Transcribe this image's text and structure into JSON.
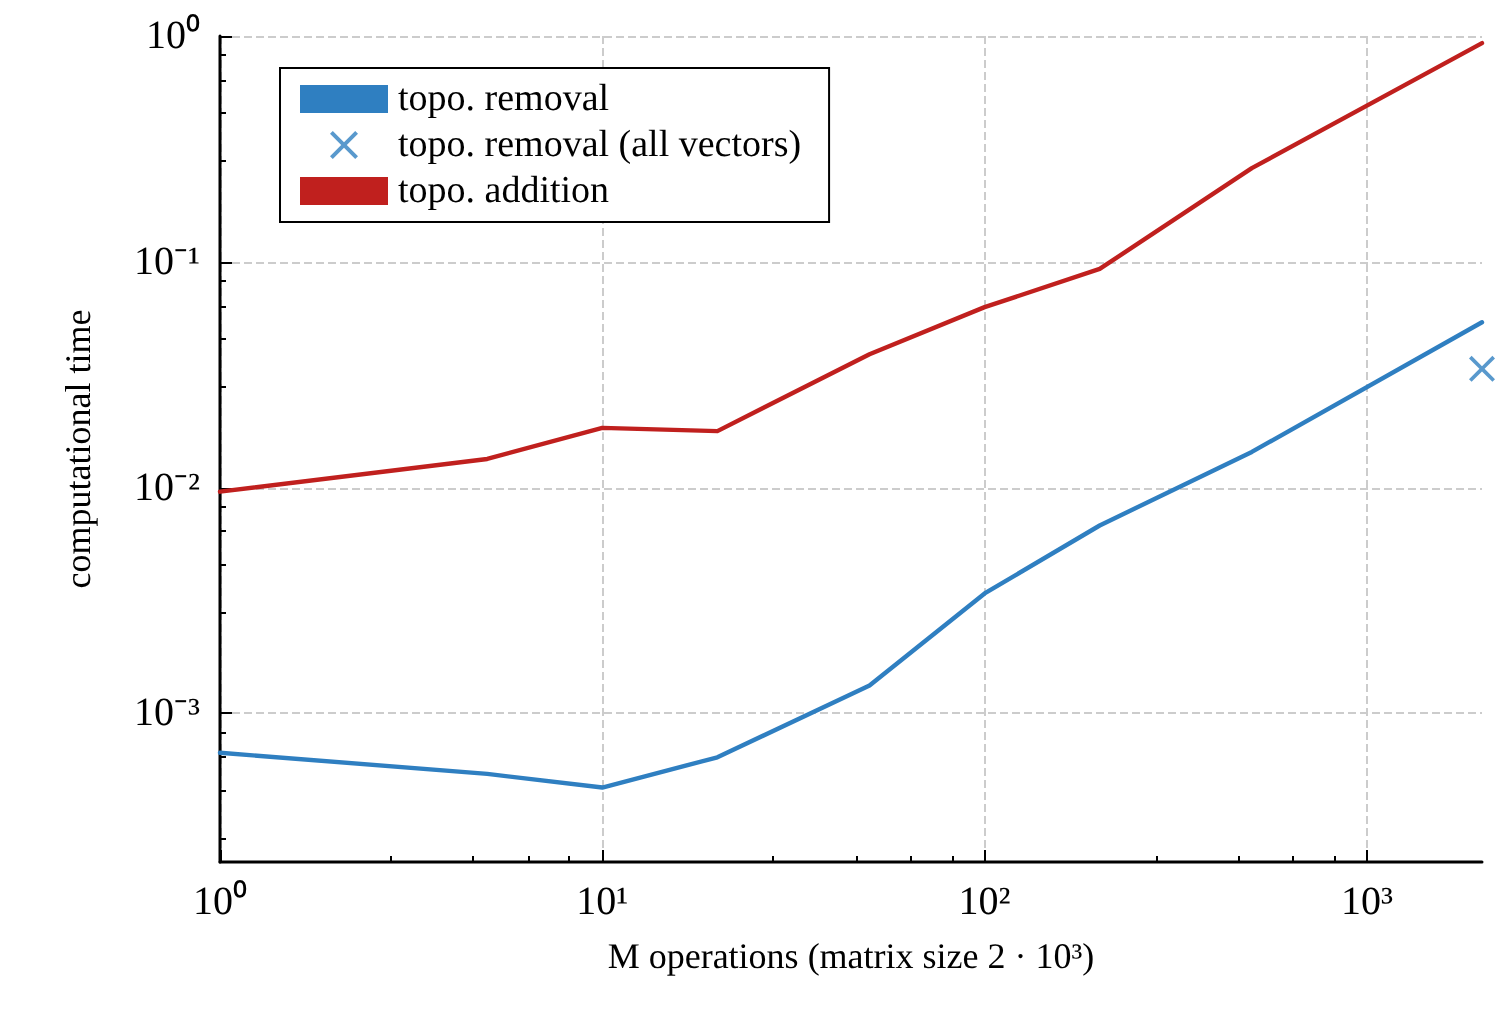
{
  "chart_data": {
    "type": "line",
    "xlabel": "M operations (matrix size 2 · 10³)",
    "ylabel": "computational time",
    "x": [
      1,
      5,
      10,
      20,
      50,
      100,
      200,
      500,
      2000
    ],
    "series": [
      {
        "name": "topo. removal",
        "color": "#2f7fc1",
        "values": [
          0.00067,
          0.00054,
          0.00047,
          0.00064,
          0.00133,
          0.0034,
          0.0068,
          0.0144,
          0.054
        ]
      },
      {
        "name": "topo. removal (all vectors)",
        "type": "scatter",
        "marker": "cross",
        "color": "#2f7fc1",
        "x": [
          2000
        ],
        "values": [
          0.0336
        ]
      },
      {
        "name": "topo. addition",
        "color": "#c0201e",
        "values": [
          0.0096,
          0.0134,
          0.0184,
          0.0178,
          0.039,
          0.063,
          0.093,
          0.26,
          0.93
        ]
      }
    ],
    "log": "xy",
    "xlim": [
      1,
      2000
    ],
    "ylim": [
      0.00022,
      1
    ],
    "xticks": [
      {
        "value": 1,
        "label": "10⁰"
      },
      {
        "value": 10,
        "label": "10¹"
      },
      {
        "value": 100,
        "label": "10²"
      },
      {
        "value": 1000,
        "label": "10³"
      }
    ],
    "yticks": [
      {
        "value": 0.001,
        "label": "10⁻³"
      },
      {
        "value": 0.01,
        "label": "10⁻²"
      },
      {
        "value": 0.1,
        "label": "10⁻¹"
      },
      {
        "value": 1,
        "label": "10⁰"
      }
    ],
    "grid": true,
    "legend": "top left",
    "marker": "none",
    "line_style": "solid"
  }
}
